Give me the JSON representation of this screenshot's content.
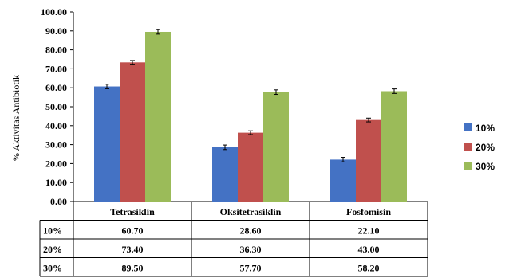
{
  "chart_data": {
    "type": "bar",
    "ylabel": "% Aktivitas Antibiotik",
    "ylim": [
      0,
      100
    ],
    "ytick_step": 10,
    "ytick_labels": [
      "0.00",
      "10.00",
      "20.00",
      "30.00",
      "40.00",
      "50.00",
      "60.00",
      "70.00",
      "80.00",
      "90.00",
      "100.00"
    ],
    "categories": [
      "Tetrasiklin",
      "Oksitetrasiklin",
      "Fosfomisin"
    ],
    "series": [
      {
        "name": "10%",
        "color": "#4472c4",
        "values": [
          60.7,
          28.6,
          22.1
        ],
        "labels": [
          "60.70",
          "28.60",
          "22.10"
        ],
        "error": [
          1.2,
          1.2,
          1.2
        ]
      },
      {
        "name": "20%",
        "color": "#c0504d",
        "values": [
          73.4,
          36.3,
          43.0
        ],
        "labels": [
          "73.40",
          "36.30",
          "43.00"
        ],
        "error": [
          1.0,
          1.0,
          1.0
        ]
      },
      {
        "name": "30%",
        "color": "#9bbb59",
        "values": [
          89.5,
          57.7,
          58.2
        ],
        "labels": [
          "89.50",
          "57.70",
          "58.20"
        ],
        "error": [
          1.2,
          1.2,
          1.2
        ]
      }
    ],
    "legend_position": "right",
    "grid": false,
    "data_table": true
  }
}
